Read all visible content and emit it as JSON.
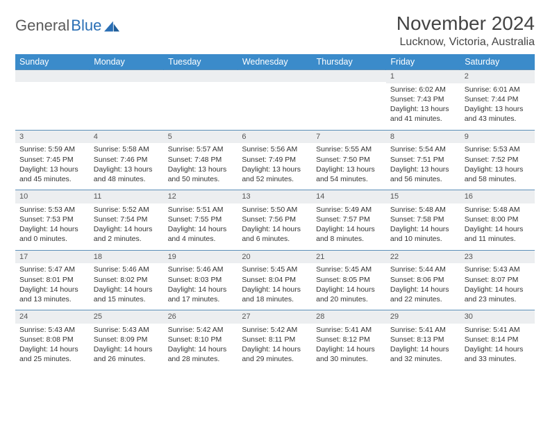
{
  "brand": {
    "part1": "General",
    "part2": "Blue"
  },
  "title": "November 2024",
  "location": "Lucknow, Victoria, Australia",
  "colors": {
    "header_bg": "#3b8bca",
    "header_text": "#ffffff",
    "row_divider": "#5b8fb8",
    "daynum_bg": "#eceef0",
    "text": "#333333",
    "brand_gray": "#5a5a5a",
    "brand_blue": "#2a6fb5"
  },
  "typography": {
    "title_fontsize": 28,
    "location_fontsize": 16,
    "weekday_fontsize": 12.5,
    "cell_fontsize": 10.5
  },
  "weekdays": [
    "Sunday",
    "Monday",
    "Tuesday",
    "Wednesday",
    "Thursday",
    "Friday",
    "Saturday"
  ],
  "weeks": [
    [
      {
        "day": "",
        "sunrise": "",
        "sunset": "",
        "daylight": ""
      },
      {
        "day": "",
        "sunrise": "",
        "sunset": "",
        "daylight": ""
      },
      {
        "day": "",
        "sunrise": "",
        "sunset": "",
        "daylight": ""
      },
      {
        "day": "",
        "sunrise": "",
        "sunset": "",
        "daylight": ""
      },
      {
        "day": "",
        "sunrise": "",
        "sunset": "",
        "daylight": ""
      },
      {
        "day": "1",
        "sunrise": "Sunrise: 6:02 AM",
        "sunset": "Sunset: 7:43 PM",
        "daylight": "Daylight: 13 hours and 41 minutes."
      },
      {
        "day": "2",
        "sunrise": "Sunrise: 6:01 AM",
        "sunset": "Sunset: 7:44 PM",
        "daylight": "Daylight: 13 hours and 43 minutes."
      }
    ],
    [
      {
        "day": "3",
        "sunrise": "Sunrise: 5:59 AM",
        "sunset": "Sunset: 7:45 PM",
        "daylight": "Daylight: 13 hours and 45 minutes."
      },
      {
        "day": "4",
        "sunrise": "Sunrise: 5:58 AM",
        "sunset": "Sunset: 7:46 PM",
        "daylight": "Daylight: 13 hours and 48 minutes."
      },
      {
        "day": "5",
        "sunrise": "Sunrise: 5:57 AM",
        "sunset": "Sunset: 7:48 PM",
        "daylight": "Daylight: 13 hours and 50 minutes."
      },
      {
        "day": "6",
        "sunrise": "Sunrise: 5:56 AM",
        "sunset": "Sunset: 7:49 PM",
        "daylight": "Daylight: 13 hours and 52 minutes."
      },
      {
        "day": "7",
        "sunrise": "Sunrise: 5:55 AM",
        "sunset": "Sunset: 7:50 PM",
        "daylight": "Daylight: 13 hours and 54 minutes."
      },
      {
        "day": "8",
        "sunrise": "Sunrise: 5:54 AM",
        "sunset": "Sunset: 7:51 PM",
        "daylight": "Daylight: 13 hours and 56 minutes."
      },
      {
        "day": "9",
        "sunrise": "Sunrise: 5:53 AM",
        "sunset": "Sunset: 7:52 PM",
        "daylight": "Daylight: 13 hours and 58 minutes."
      }
    ],
    [
      {
        "day": "10",
        "sunrise": "Sunrise: 5:53 AM",
        "sunset": "Sunset: 7:53 PM",
        "daylight": "Daylight: 14 hours and 0 minutes."
      },
      {
        "day": "11",
        "sunrise": "Sunrise: 5:52 AM",
        "sunset": "Sunset: 7:54 PM",
        "daylight": "Daylight: 14 hours and 2 minutes."
      },
      {
        "day": "12",
        "sunrise": "Sunrise: 5:51 AM",
        "sunset": "Sunset: 7:55 PM",
        "daylight": "Daylight: 14 hours and 4 minutes."
      },
      {
        "day": "13",
        "sunrise": "Sunrise: 5:50 AM",
        "sunset": "Sunset: 7:56 PM",
        "daylight": "Daylight: 14 hours and 6 minutes."
      },
      {
        "day": "14",
        "sunrise": "Sunrise: 5:49 AM",
        "sunset": "Sunset: 7:57 PM",
        "daylight": "Daylight: 14 hours and 8 minutes."
      },
      {
        "day": "15",
        "sunrise": "Sunrise: 5:48 AM",
        "sunset": "Sunset: 7:58 PM",
        "daylight": "Daylight: 14 hours and 10 minutes."
      },
      {
        "day": "16",
        "sunrise": "Sunrise: 5:48 AM",
        "sunset": "Sunset: 8:00 PM",
        "daylight": "Daylight: 14 hours and 11 minutes."
      }
    ],
    [
      {
        "day": "17",
        "sunrise": "Sunrise: 5:47 AM",
        "sunset": "Sunset: 8:01 PM",
        "daylight": "Daylight: 14 hours and 13 minutes."
      },
      {
        "day": "18",
        "sunrise": "Sunrise: 5:46 AM",
        "sunset": "Sunset: 8:02 PM",
        "daylight": "Daylight: 14 hours and 15 minutes."
      },
      {
        "day": "19",
        "sunrise": "Sunrise: 5:46 AM",
        "sunset": "Sunset: 8:03 PM",
        "daylight": "Daylight: 14 hours and 17 minutes."
      },
      {
        "day": "20",
        "sunrise": "Sunrise: 5:45 AM",
        "sunset": "Sunset: 8:04 PM",
        "daylight": "Daylight: 14 hours and 18 minutes."
      },
      {
        "day": "21",
        "sunrise": "Sunrise: 5:45 AM",
        "sunset": "Sunset: 8:05 PM",
        "daylight": "Daylight: 14 hours and 20 minutes."
      },
      {
        "day": "22",
        "sunrise": "Sunrise: 5:44 AM",
        "sunset": "Sunset: 8:06 PM",
        "daylight": "Daylight: 14 hours and 22 minutes."
      },
      {
        "day": "23",
        "sunrise": "Sunrise: 5:43 AM",
        "sunset": "Sunset: 8:07 PM",
        "daylight": "Daylight: 14 hours and 23 minutes."
      }
    ],
    [
      {
        "day": "24",
        "sunrise": "Sunrise: 5:43 AM",
        "sunset": "Sunset: 8:08 PM",
        "daylight": "Daylight: 14 hours and 25 minutes."
      },
      {
        "day": "25",
        "sunrise": "Sunrise: 5:43 AM",
        "sunset": "Sunset: 8:09 PM",
        "daylight": "Daylight: 14 hours and 26 minutes."
      },
      {
        "day": "26",
        "sunrise": "Sunrise: 5:42 AM",
        "sunset": "Sunset: 8:10 PM",
        "daylight": "Daylight: 14 hours and 28 minutes."
      },
      {
        "day": "27",
        "sunrise": "Sunrise: 5:42 AM",
        "sunset": "Sunset: 8:11 PM",
        "daylight": "Daylight: 14 hours and 29 minutes."
      },
      {
        "day": "28",
        "sunrise": "Sunrise: 5:41 AM",
        "sunset": "Sunset: 8:12 PM",
        "daylight": "Daylight: 14 hours and 30 minutes."
      },
      {
        "day": "29",
        "sunrise": "Sunrise: 5:41 AM",
        "sunset": "Sunset: 8:13 PM",
        "daylight": "Daylight: 14 hours and 32 minutes."
      },
      {
        "day": "30",
        "sunrise": "Sunrise: 5:41 AM",
        "sunset": "Sunset: 8:14 PM",
        "daylight": "Daylight: 14 hours and 33 minutes."
      }
    ]
  ]
}
